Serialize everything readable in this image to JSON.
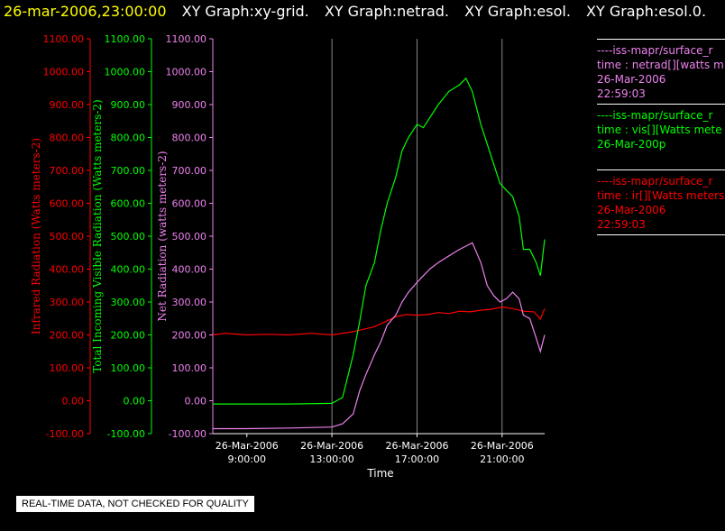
{
  "header": {
    "timestamp": "26-mar-2006,23:00:00",
    "graphs": [
      "XY Graph:xy-grid.",
      "XY Graph:netrad.",
      "XY Graph:esol.",
      "XY Graph:esol.0."
    ]
  },
  "legend": [
    {
      "color": "#ee82ee",
      "lines": [
        "----iss-mapr/surface_r",
        "time : netrad[][watts m",
        "26-Mar-2006",
        "22:59:03"
      ]
    },
    {
      "color": "#00ff00",
      "lines": [
        "----iss-mapr/surface_r",
        "time : vis[][Watts mete",
        "26-Mar-200p"
      ]
    },
    {
      "color": "#ff0000",
      "lines": [
        "----iss-mapr/surface_r",
        "time : ir[][Watts meters",
        "26-Mar-2006",
        "22:59:03"
      ]
    }
  ],
  "notice": "REAL-TIME DATA, NOT CHECKED FOR QUALITY",
  "chart_data": {
    "type": "line",
    "xlabel": "Time",
    "x_ticks": [
      {
        "date": "26-Mar-2006",
        "time": "9:00:00",
        "hour": 9
      },
      {
        "date": "26-Mar-2006",
        "time": "13:00:00",
        "hour": 13
      },
      {
        "date": "26-Mar-2006",
        "time": "17:00:00",
        "hour": 17
      },
      {
        "date": "26-Mar-2006",
        "time": "21:00:00",
        "hour": 21
      }
    ],
    "xlim_hours": [
      7.4,
      23.0
    ],
    "grid_vertical_hours": [
      13,
      17,
      21
    ],
    "axes": [
      {
        "label": "Infrared Radiation (Watts meters-2)",
        "color": "#ff0000",
        "ylim": [
          -100,
          1100
        ],
        "ticks": [
          1100,
          1000,
          900,
          800,
          700,
          600,
          500,
          400,
          300,
          200,
          100,
          0,
          -100
        ],
        "tick_labels": [
          "1100.00",
          "1000.00",
          "900.00",
          "800.00",
          "700.00",
          "600.00",
          "500.00",
          "400.00",
          "300.00",
          "200.00",
          "100.00",
          "0.00",
          "-100.00"
        ]
      },
      {
        "label": "Total Incoming Visible Radiation (Watts meters-2)",
        "color": "#00ff00",
        "ylim": [
          -100,
          1100
        ],
        "ticks": [
          1100,
          1000,
          900,
          800,
          700,
          600,
          500,
          400,
          300,
          200,
          100,
          0,
          -100
        ],
        "tick_labels": [
          "1100.00",
          "1000.00",
          "900.00",
          "800.00",
          "700.00",
          "600.00",
          "500.00",
          "400.00",
          "300.00",
          "200.00",
          "100.00",
          "0.00",
          "-100.00"
        ]
      },
      {
        "label": "Net Radiation (watts meters-2)",
        "color": "#ee82ee",
        "ylim": [
          -100,
          1100
        ],
        "ticks": [
          1100,
          1000,
          900,
          800,
          700,
          600,
          500,
          400,
          300,
          200,
          100,
          0,
          -100
        ],
        "tick_labels": [
          "1100.00",
          "1000.00",
          "900.00",
          "800.00",
          "700.00",
          "600.00",
          "500.00",
          "400.00",
          "300.00",
          "200.00",
          "100.00",
          "0.00",
          "-100.00"
        ]
      }
    ],
    "series": [
      {
        "color": "#ff0000",
        "x": [
          7.4,
          8.0,
          9.0,
          10.0,
          11.0,
          12.0,
          13.0,
          14.0,
          15.0,
          15.5,
          16.0,
          16.5,
          17.0,
          17.5,
          18.0,
          18.5,
          19.0,
          19.5,
          20.0,
          20.5,
          21.0,
          21.5,
          22.0,
          22.5,
          22.8,
          23.0
        ],
        "y": [
          200,
          205,
          200,
          202,
          200,
          205,
          200,
          210,
          225,
          240,
          255,
          262,
          260,
          262,
          268,
          265,
          272,
          270,
          275,
          278,
          285,
          280,
          272,
          270,
          248,
          280
        ]
      },
      {
        "color": "#00ff00",
        "x": [
          7.4,
          9.0,
          11.0,
          13.0,
          13.5,
          14.0,
          14.3,
          14.6,
          15.0,
          15.3,
          15.6,
          16.0,
          16.3,
          16.6,
          17.0,
          17.3,
          17.6,
          18.0,
          18.5,
          19.0,
          19.3,
          19.6,
          20.0,
          20.3,
          20.6,
          20.9,
          21.2,
          21.5,
          21.8,
          22.0,
          22.3,
          22.6,
          22.8,
          23.0
        ],
        "y": [
          -10,
          -10,
          -10,
          -8,
          10,
          140,
          240,
          350,
          420,
          520,
          600,
          680,
          760,
          800,
          840,
          830,
          860,
          900,
          940,
          960,
          980,
          940,
          840,
          780,
          720,
          660,
          640,
          620,
          560,
          460,
          460,
          420,
          380,
          490
        ]
      },
      {
        "color": "#ee82ee",
        "x": [
          7.4,
          9.0,
          11.0,
          13.0,
          13.5,
          14.0,
          14.3,
          14.6,
          15.0,
          15.3,
          15.6,
          16.0,
          16.3,
          16.6,
          17.0,
          17.3,
          17.6,
          18.0,
          18.5,
          19.0,
          19.3,
          19.6,
          20.0,
          20.3,
          20.6,
          20.9,
          21.2,
          21.5,
          21.8,
          22.0,
          22.3,
          22.6,
          22.8,
          23.0
        ],
        "y": [
          -85,
          -85,
          -83,
          -80,
          -70,
          -40,
          30,
          80,
          140,
          180,
          230,
          260,
          300,
          330,
          360,
          380,
          400,
          420,
          440,
          460,
          470,
          480,
          420,
          350,
          320,
          300,
          310,
          330,
          310,
          260,
          250,
          190,
          150,
          200
        ]
      }
    ]
  }
}
